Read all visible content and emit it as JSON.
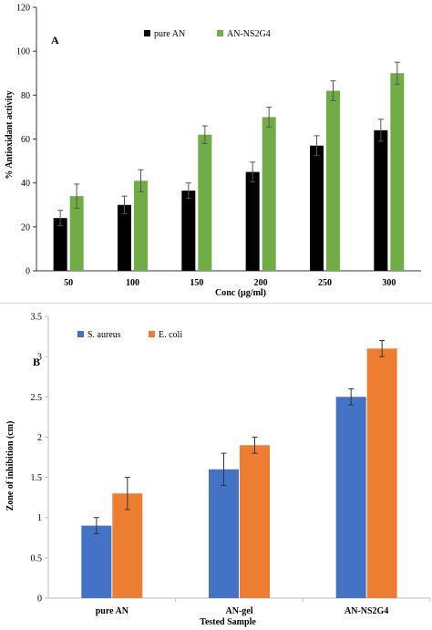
{
  "chart_data": [
    {
      "type": "bar",
      "panel_label": "A",
      "xlabel": "Conc (µg/ml)",
      "ylabel": "% Antioxidant activity",
      "ylim": [
        0,
        120
      ],
      "yticks": [
        "0",
        "20",
        "40",
        "60",
        "80",
        "100",
        "120"
      ],
      "categories": [
        "50",
        "100",
        "150",
        "200",
        "250",
        "300"
      ],
      "series": [
        {
          "name": "pure AN",
          "color": "#000000",
          "values": [
            24,
            30,
            36.5,
            45,
            57,
            64
          ],
          "errors": [
            3.5,
            4,
            3.5,
            4.5,
            4.5,
            5
          ]
        },
        {
          "name": "AN-NS2G4",
          "color": "#70ad47",
          "values": [
            34,
            41,
            62,
            70,
            82,
            90
          ],
          "errors": [
            5.5,
            5,
            4,
            4.5,
            4.5,
            5
          ]
        }
      ],
      "legend_position": "top-center",
      "grid": false
    },
    {
      "type": "bar",
      "panel_label": "B",
      "xlabel": "Tested Sample",
      "ylabel": "Zone of inhibition  (cm)",
      "ylim": [
        0,
        3.5
      ],
      "yticks": [
        "0",
        "0.5",
        "1",
        "1.5",
        "2",
        "2.5",
        "3",
        "3.5"
      ],
      "categories": [
        "pure AN",
        "AN-gel",
        "AN-NS2G4"
      ],
      "series": [
        {
          "name": "S. aureus",
          "color": "#4472c4",
          "values": [
            0.9,
            1.6,
            2.5
          ],
          "errors": [
            0.1,
            0.2,
            0.1
          ]
        },
        {
          "name": "E. coli",
          "color": "#ed7d31",
          "values": [
            1.3,
            1.9,
            3.1
          ],
          "errors": [
            0.2,
            0.1,
            0.1
          ]
        }
      ],
      "legend_position": "top-left",
      "grid": false
    }
  ]
}
